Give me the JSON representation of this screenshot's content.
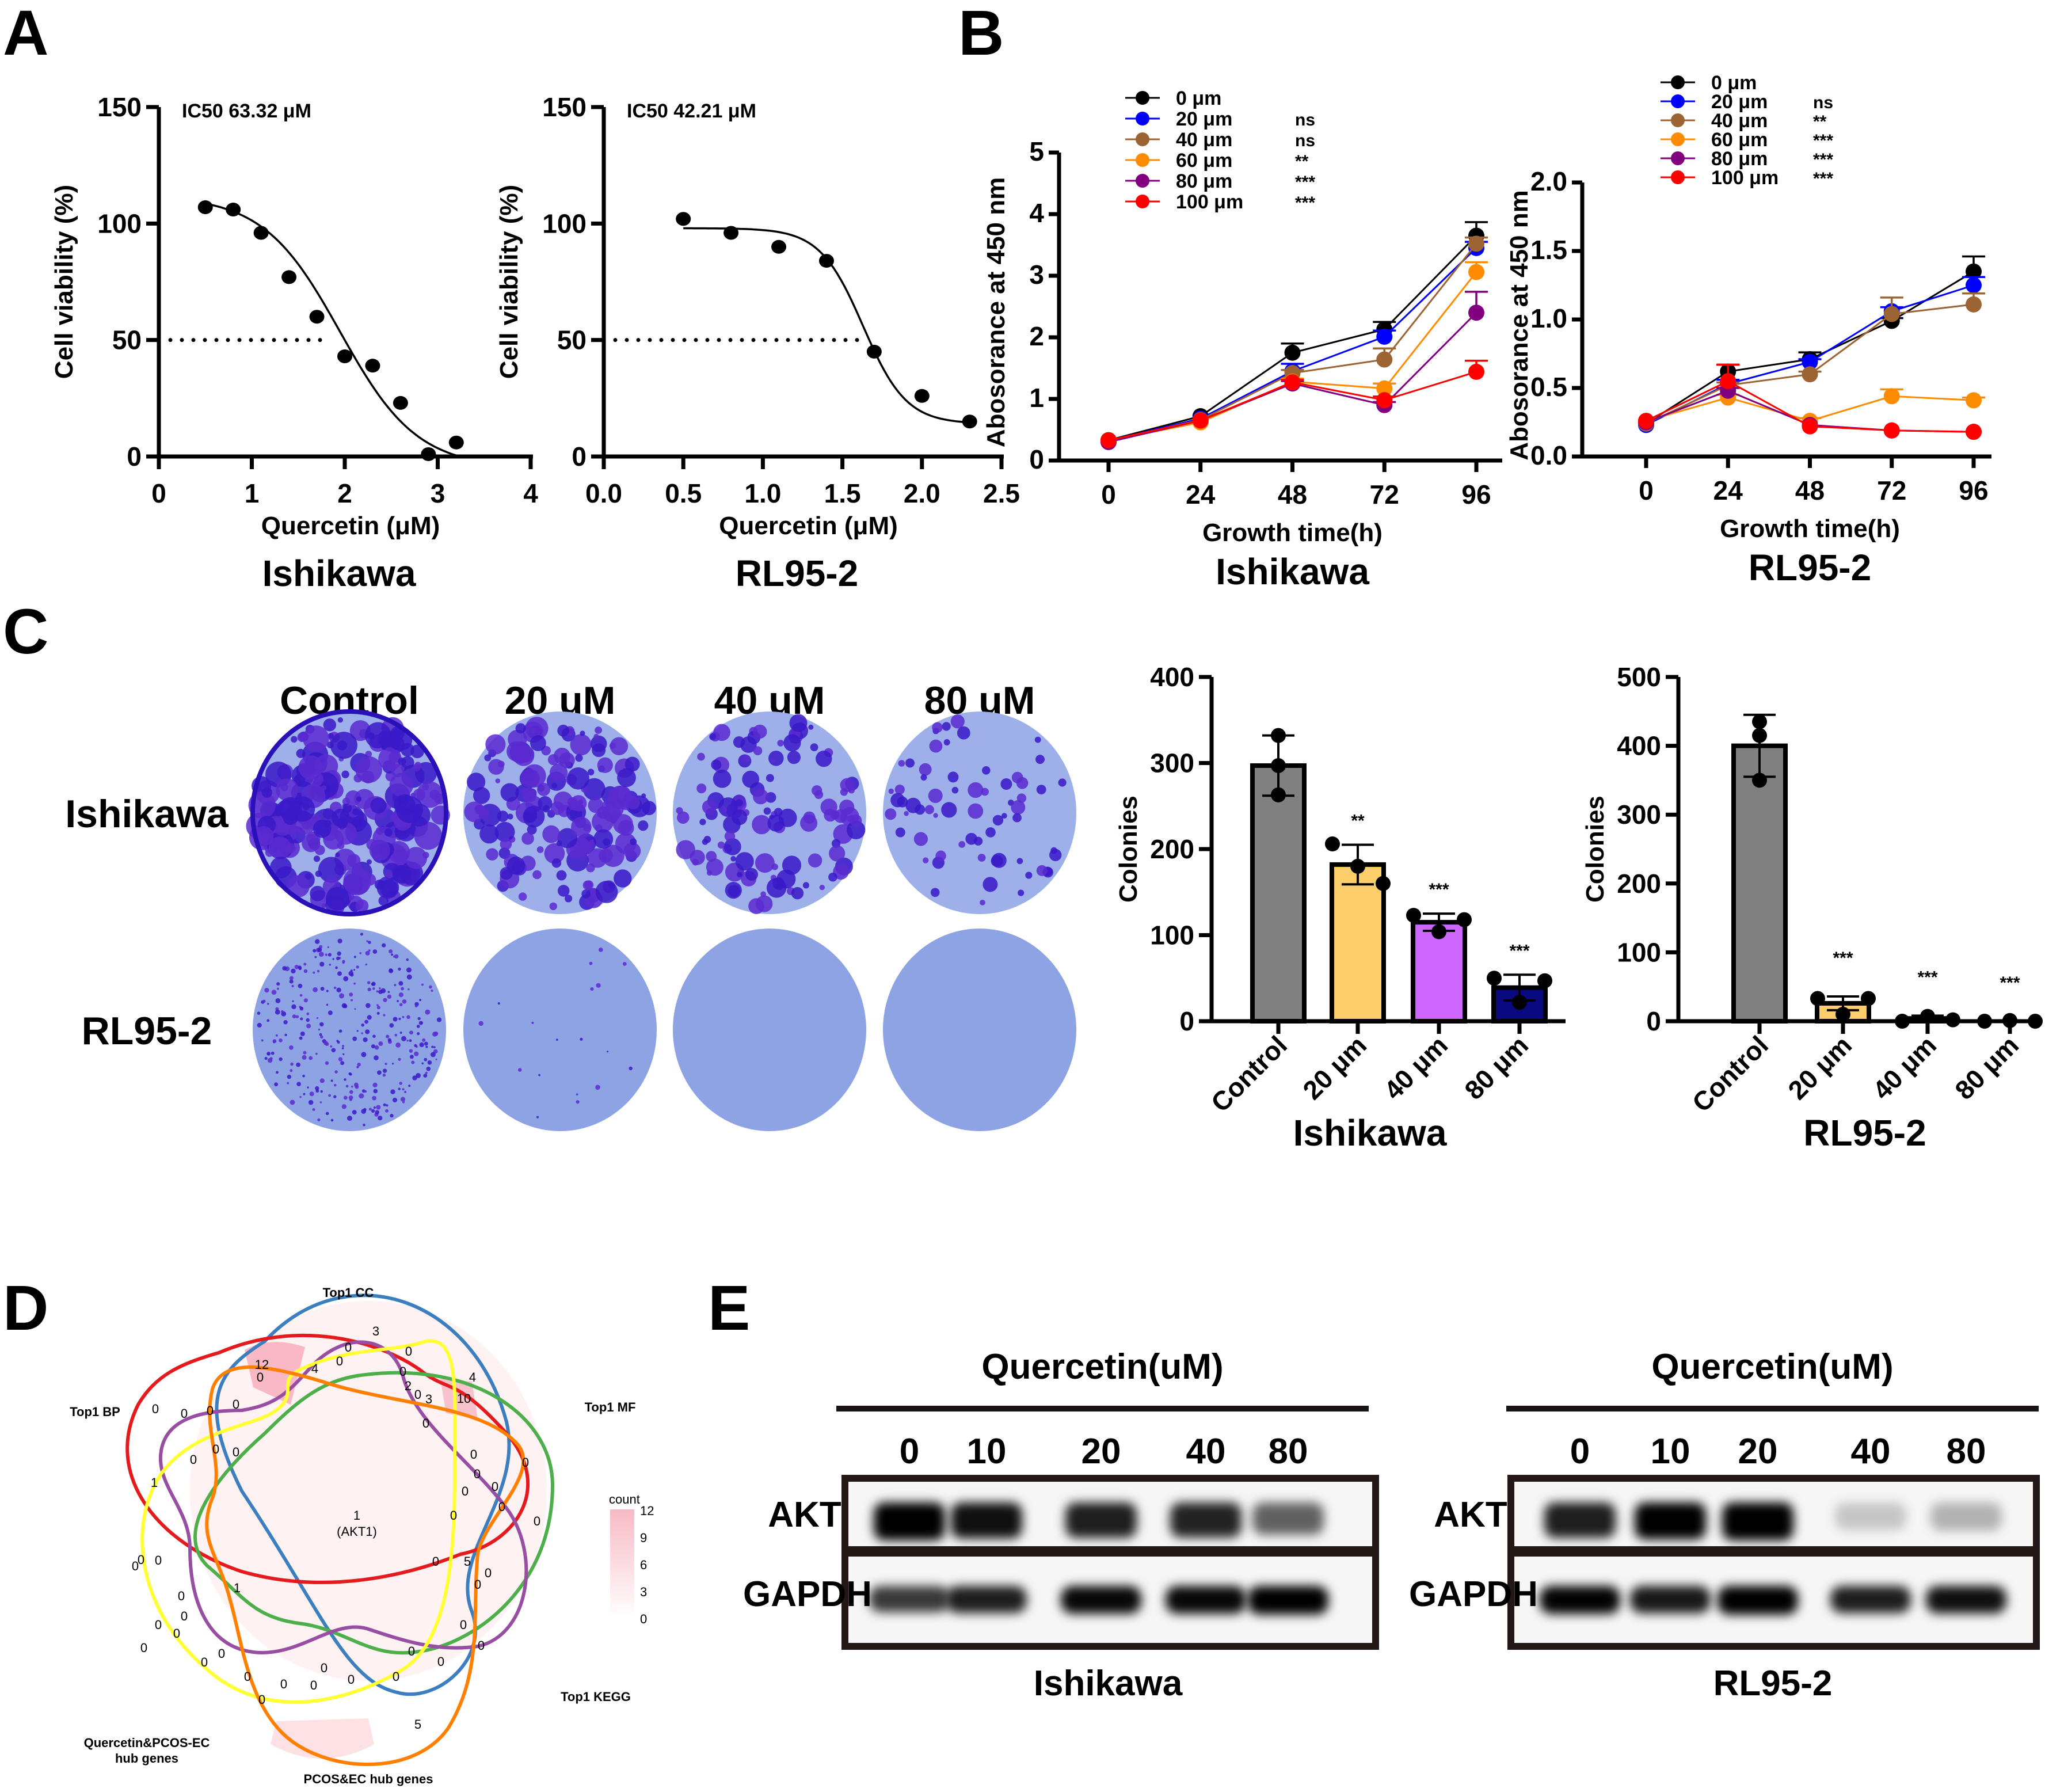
{
  "panels": {
    "A": "A",
    "B": "B",
    "C": "C",
    "D": "D",
    "E": "E"
  },
  "chart_data": [
    {
      "id": "A1",
      "type": "scatter",
      "title": "IC50 63.32 μM",
      "xlabel": "Quercetin (μM)",
      "ylabel": "Cell viability (%)",
      "caption": "Ishikawa",
      "xlim": [
        0,
        4
      ],
      "ylim": [
        0,
        150
      ],
      "xticks": [
        "0",
        "1",
        "2",
        "3",
        "4"
      ],
      "yticks": [
        "0",
        "50",
        "100",
        "150"
      ],
      "x": [
        0.5,
        0.8,
        1.1,
        1.4,
        1.7,
        2.0,
        2.3,
        2.6,
        2.9,
        3.2
      ],
      "y": [
        107,
        106,
        96,
        77,
        60,
        43,
        39,
        23,
        1,
        6
      ],
      "fit": {
        "top": 112,
        "bottom": -5,
        "logIC50": 1.95,
        "hill": 1.05
      },
      "ic50_line_y": 50,
      "ic50_line_x_end": 1.85
    },
    {
      "id": "A2",
      "type": "scatter",
      "title": "IC50 42.21 μM",
      "xlabel": "Quercetin (μM)",
      "ylabel": "Cell viability (%)",
      "caption": "RL95-2",
      "xlim": [
        0,
        2.5
      ],
      "ylim": [
        0,
        150
      ],
      "xticks": [
        "0.0",
        "0.5",
        "1.0",
        "1.5",
        "2.0",
        "2.5"
      ],
      "yticks": [
        "0",
        "50",
        "100",
        "150"
      ],
      "x": [
        0.5,
        0.8,
        1.1,
        1.4,
        1.7,
        2.0,
        2.3
      ],
      "y": [
        102,
        96,
        90,
        84,
        45,
        26,
        15
      ],
      "fit": {
        "top": 98,
        "bottom": 14,
        "logIC50": 1.63,
        "hill": 3.2
      },
      "ic50_line_y": 50,
      "ic50_line_x_end": 1.66
    },
    {
      "id": "B1",
      "type": "line",
      "xlabel": "Growth time(h)",
      "ylabel": "Abosorance  at 450 nm",
      "caption": "Ishikawa",
      "x": [
        0,
        24,
        48,
        72,
        96
      ],
      "xticks": [
        "0",
        "24",
        "48",
        "72",
        "96"
      ],
      "ylim": [
        0,
        5
      ],
      "yticks": [
        "0",
        "1",
        "2",
        "3",
        "4",
        "5"
      ],
      "series": [
        {
          "name": "0 μm",
          "sig": "",
          "color": "#000000",
          "values": [
            0.33,
            0.72,
            1.75,
            2.13,
            3.65
          ],
          "err": [
            0.02,
            0.03,
            0.15,
            0.12,
            0.22
          ]
        },
        {
          "name": "20 μm",
          "sig": "ns",
          "color": "#0000ff",
          "values": [
            0.32,
            0.68,
            1.45,
            2.01,
            3.45
          ],
          "err": [
            0.02,
            0.03,
            0.12,
            0.1,
            0.1
          ]
        },
        {
          "name": "40 μm",
          "sig": "ns",
          "color": "#9c6433",
          "values": [
            0.32,
            0.66,
            1.42,
            1.64,
            3.52
          ],
          "err": [
            0.02,
            0.02,
            0.05,
            0.18,
            0.1
          ]
        },
        {
          "name": "60 μm",
          "sig": "**",
          "color": "#ff8c00",
          "values": [
            0.32,
            0.62,
            1.28,
            1.17,
            3.06
          ],
          "err": [
            0.02,
            0.02,
            0.05,
            0.08,
            0.16
          ]
        },
        {
          "name": "80 μm",
          "sig": "***",
          "color": "#800080",
          "values": [
            0.3,
            0.65,
            1.25,
            0.9,
            2.4
          ],
          "err": [
            0.02,
            0.02,
            0.04,
            0.05,
            0.34
          ]
        },
        {
          "name": "100 μm",
          "sig": "***",
          "color": "#ff0000",
          "values": [
            0.33,
            0.65,
            1.27,
            0.98,
            1.44
          ],
          "err": [
            0.02,
            0.02,
            0.04,
            0.06,
            0.18
          ]
        }
      ]
    },
    {
      "id": "B2",
      "type": "line",
      "xlabel": "Growth time(h)",
      "ylabel": "Abosorance  at 450 nm",
      "caption": "RL95-2",
      "x": [
        0,
        24,
        48,
        72,
        96
      ],
      "xticks": [
        "0",
        "24",
        "48",
        "72",
        "96"
      ],
      "ylim": [
        0,
        2
      ],
      "yticks": [
        "0.0",
        "0.5",
        "1.0",
        "1.5",
        "2.0"
      ],
      "series": [
        {
          "name": "0 μm",
          "sig": "",
          "color": "#000000",
          "values": [
            0.24,
            0.62,
            0.71,
            0.99,
            1.35
          ],
          "err": [
            0.01,
            0.05,
            0.05,
            0.02,
            0.11
          ]
        },
        {
          "name": "20 μm",
          "sig": "ns",
          "color": "#0000ff",
          "values": [
            0.23,
            0.53,
            0.69,
            1.06,
            1.25
          ],
          "err": [
            0.01,
            0.03,
            0.02,
            0.03,
            0.06
          ]
        },
        {
          "name": "40 μm",
          "sig": "**",
          "color": "#9c6433",
          "values": [
            0.24,
            0.52,
            0.6,
            1.04,
            1.11
          ],
          "err": [
            0.01,
            0.02,
            0.02,
            0.12,
            0.08
          ]
        },
        {
          "name": "60 μm",
          "sig": "***",
          "color": "#ff8c00",
          "values": [
            0.26,
            0.43,
            0.26,
            0.44,
            0.41
          ],
          "err": [
            0.01,
            0.02,
            0.02,
            0.05,
            0.02
          ]
        },
        {
          "name": "80 μm",
          "sig": "***",
          "color": "#800080",
          "values": [
            0.25,
            0.48,
            0.23,
            0.19,
            0.18
          ],
          "err": [
            0.01,
            0.02,
            0.01,
            0.01,
            0.01
          ]
        },
        {
          "name": "100 μm",
          "sig": "***",
          "color": "#ff0000",
          "values": [
            0.26,
            0.55,
            0.22,
            0.19,
            0.18
          ],
          "err": [
            0.01,
            0.12,
            0.01,
            0.01,
            0.01
          ]
        }
      ]
    },
    {
      "id": "C1",
      "type": "bar",
      "ylabel": "Colonies",
      "caption": "Ishikawa",
      "categories": [
        "Control",
        "20 μm",
        "40 μm",
        "80 μm"
      ],
      "values": [
        297,
        182,
        115,
        39
      ],
      "err": [
        35,
        23,
        10,
        15
      ],
      "points": [
        [
          332,
          297,
          263
        ],
        [
          206,
          180,
          160
        ],
        [
          123,
          104,
          118
        ],
        [
          50,
          22,
          47
        ]
      ],
      "sig": [
        "",
        "**",
        "***",
        "***"
      ],
      "colors": [
        "#808080",
        "#fcce6b",
        "#cc66ff",
        "#0a0a80"
      ],
      "ylim": [
        0,
        400
      ],
      "yticks": [
        "0",
        "100",
        "200",
        "300",
        "400"
      ]
    },
    {
      "id": "C2",
      "type": "bar",
      "ylabel": "Colonies",
      "caption": "RL95-2",
      "categories": [
        "Control",
        "20 μm",
        "40 μm",
        "80 μm"
      ],
      "values": [
        400,
        26,
        4,
        0
      ],
      "err": [
        45,
        10,
        4,
        0
      ],
      "points": [
        [
          435,
          415,
          350
        ],
        [
          33,
          10,
          33
        ],
        [
          0,
          7,
          2
        ],
        [
          0,
          1,
          0
        ]
      ],
      "sig": [
        "",
        "***",
        "***",
        "***"
      ],
      "colors": [
        "#808080",
        "#fcce6b",
        "#cc66ff",
        "#0a0a80"
      ],
      "ylim": [
        0,
        500
      ],
      "yticks": [
        "0",
        "100",
        "200",
        "300",
        "400",
        "500"
      ]
    }
  ],
  "colony_assay": {
    "columns": [
      "Control",
      "20 uM",
      "40 uM",
      "80 uM"
    ],
    "rows": [
      "Ishikawa",
      "RL95-2"
    ],
    "density": [
      [
        0.9,
        0.65,
        0.45,
        0.25
      ],
      [
        0.35,
        0.02,
        0.0,
        0.0
      ]
    ]
  },
  "venn": {
    "sets": [
      "Top1 CC",
      "Top1 BP",
      "Top1 MF",
      "Top1 KEGG",
      "Quercetin&PCOS-EC hub genes",
      "PCOS&EC hub genes"
    ],
    "set_label_lines": {
      "quercetin": [
        "Quercetin&PCOS-EC",
        "hub genes"
      ]
    },
    "center": {
      "count": "1",
      "gene": "(AKT1)"
    },
    "highlight_counts": [
      "12",
      "10",
      "5",
      "5",
      "4",
      "4",
      "3",
      "3",
      "2",
      "1",
      "1"
    ],
    "legend": {
      "title": "count",
      "ticks": [
        "12",
        "9",
        "6",
        "3",
        "0"
      ]
    }
  },
  "western": {
    "title": "Quercetin(uM)",
    "proteins": [
      "AKT",
      "GAPDH"
    ],
    "blots": [
      {
        "cell_line": "Ishikawa",
        "doses": [
          "0",
          "10",
          "20",
          "40",
          "80"
        ],
        "akt_intensity": [
          1.0,
          0.85,
          0.8,
          0.78,
          0.55
        ],
        "gapdh_intensity": [
          0.7,
          0.8,
          0.88,
          0.88,
          0.98
        ]
      },
      {
        "cell_line": "RL95-2",
        "doses": [
          "0",
          "10",
          "20",
          "40",
          "80"
        ],
        "akt_intensity": [
          0.8,
          0.92,
          1.0,
          0.18,
          0.25
        ],
        "gapdh_intensity": [
          0.9,
          0.82,
          1.0,
          0.8,
          0.85
        ]
      }
    ]
  }
}
